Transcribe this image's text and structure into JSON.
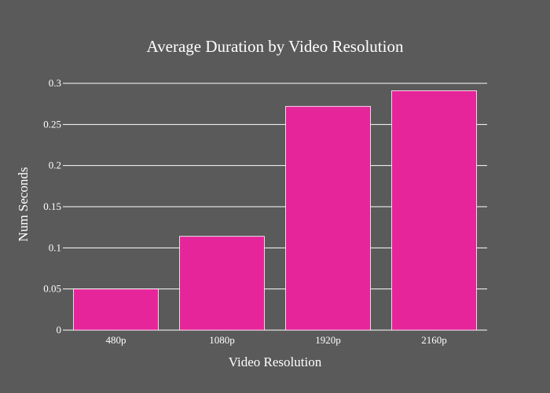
{
  "chart_data": {
    "type": "bar",
    "title": "Average Duration by Video Resolution",
    "xlabel": "Video Resolution",
    "ylabel": "Num Seconds",
    "categories": [
      "480p",
      "1080p",
      "1920p",
      "2160p"
    ],
    "values": [
      0.05,
      0.114,
      0.272,
      0.291
    ],
    "ylim": [
      0,
      0.3
    ],
    "yticks": [
      0,
      0.05,
      0.1,
      0.15,
      0.2,
      0.25,
      0.3
    ],
    "ytick_labels": [
      "0",
      "0.05",
      "0.1",
      "0.15",
      "0.2",
      "0.25",
      "0.3"
    ],
    "grid": true,
    "colors": {
      "background": "#5a5a5a",
      "bar": "#e6259a",
      "bar_edge": "#ffffff",
      "grid": "#ffffff",
      "text": "#ffffff"
    }
  }
}
